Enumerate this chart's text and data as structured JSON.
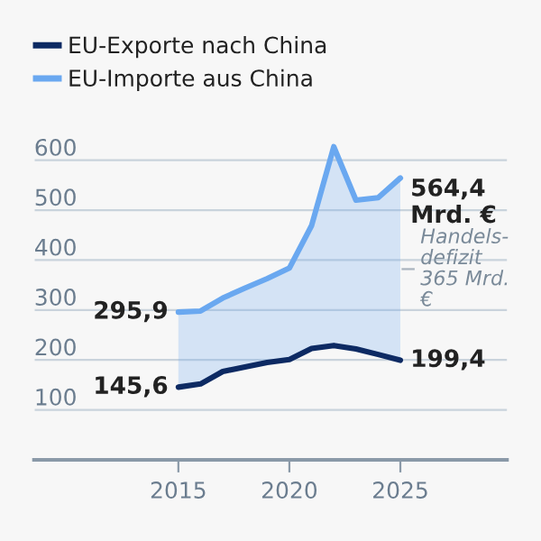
{
  "chart_data": {
    "type": "line",
    "x": [
      2015,
      2016,
      2017,
      2018,
      2019,
      2020,
      2021,
      2022,
      2023,
      2024,
      2025
    ],
    "series": [
      {
        "name": "EU-Exporte nach China",
        "color": "#0d2a63",
        "values": [
          145.6,
          152,
          177,
          186,
          195,
          201,
          223,
          229,
          222,
          211,
          199.4
        ],
        "value_labels": [
          "145,6",
          null,
          null,
          null,
          null,
          null,
          null,
          null,
          null,
          null,
          "199,4"
        ]
      },
      {
        "name": "EU-Importe aus China",
        "color": "#6aa8f0",
        "values": [
          295.9,
          298,
          324,
          344,
          363,
          384,
          469,
          627,
          520,
          525,
          564.4
        ],
        "value_labels": [
          "295,9",
          null,
          null,
          null,
          null,
          null,
          null,
          null,
          null,
          null,
          "564,4\nMrd. €"
        ],
        "lower": [
          145.6,
          152,
          177,
          186,
          195,
          201,
          223,
          229,
          222,
          211,
          199.4
        ],
        "upper": [
          295.9,
          298,
          324,
          344,
          363,
          384,
          469,
          627,
          520,
          525,
          564.4
        ]
      }
    ],
    "xlim": [
      2008.5,
      2029.8
    ],
    "xticks": [
      2015,
      2020,
      2025
    ],
    "ylim": [
      0,
      650
    ],
    "yticks": [
      100,
      200,
      300,
      400,
      500,
      600
    ],
    "grid": "y",
    "legend": "top left",
    "annotations": [
      {
        "text": "Handels-\ndefizit\n365 Mrd.\n€",
        "x": 2025,
        "y": 382
      }
    ]
  }
}
